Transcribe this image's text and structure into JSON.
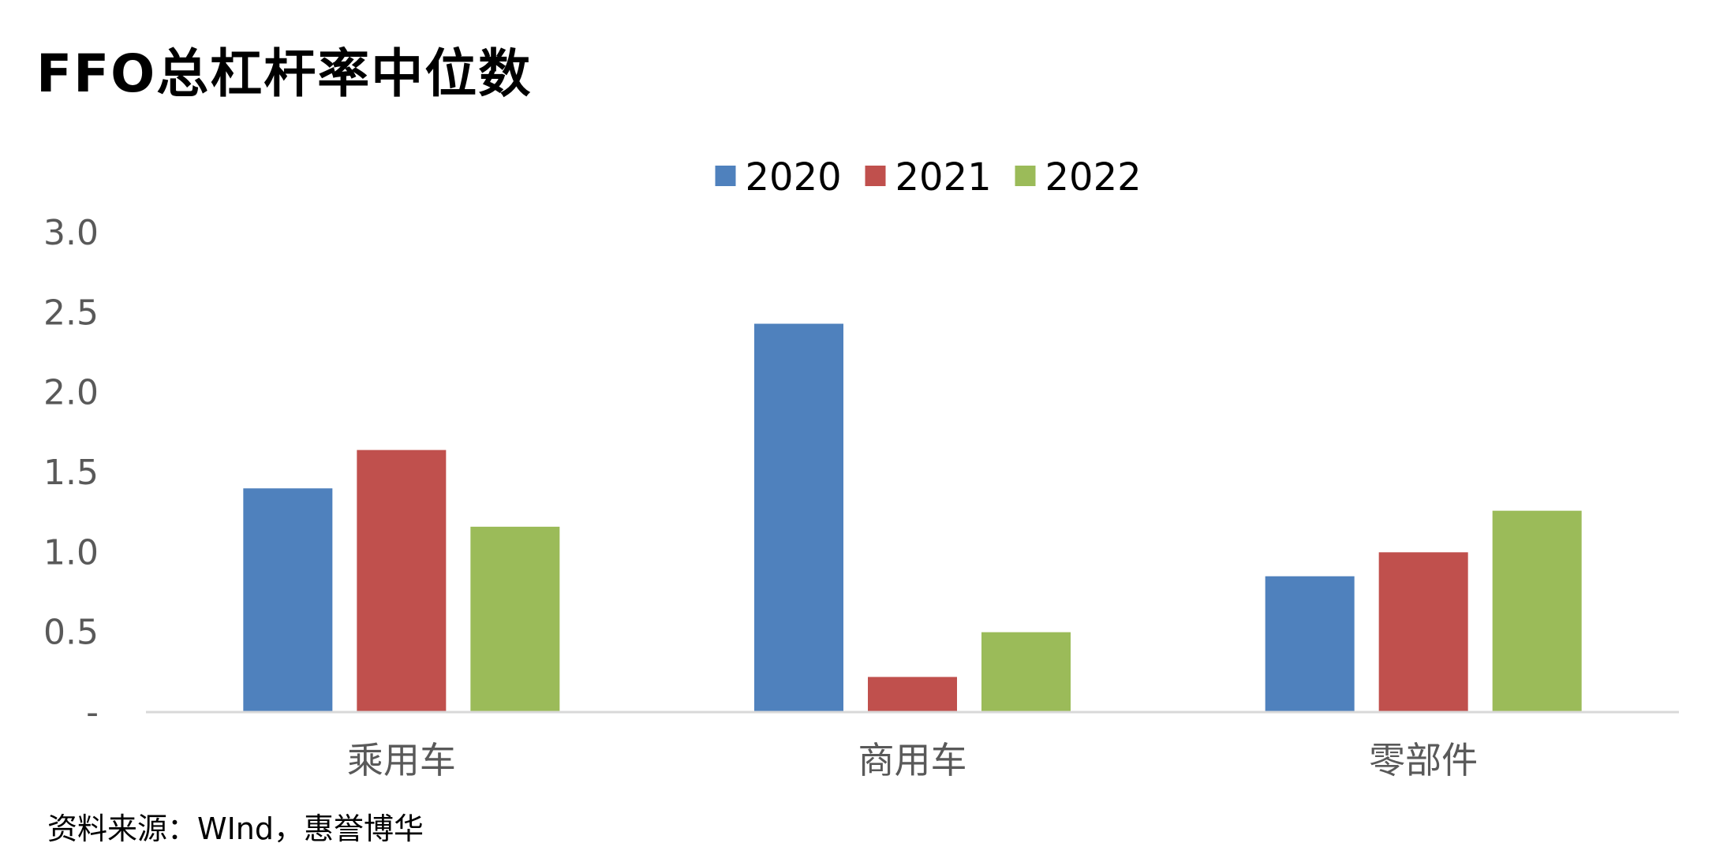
{
  "title": "FFO总杠杆率中位数",
  "source": "资料来源：WInd，惠誉博华",
  "chart_data": {
    "type": "bar",
    "title": "FFO总杠杆率中位数",
    "categories": [
      "乘用车",
      "商用车",
      "零部件"
    ],
    "series": [
      {
        "name": "2020",
        "color": "#4F81BD",
        "values": [
          1.4,
          2.43,
          0.85
        ]
      },
      {
        "name": "2021",
        "color": "#C0504D",
        "values": [
          1.64,
          0.22,
          1.0
        ]
      },
      {
        "name": "2022",
        "color": "#9BBB59",
        "values": [
          1.16,
          0.5,
          1.26
        ]
      }
    ],
    "ylim": [
      0,
      3.0
    ],
    "yticks": [
      0,
      0.5,
      1.0,
      1.5,
      2.0,
      2.5,
      3.0
    ],
    "ytick_labels": [
      "-",
      "0.5",
      "1.0",
      "1.5",
      "2.0",
      "2.5",
      "3.0"
    ],
    "grid": false,
    "legend": "top-center",
    "axis_color": "#D9D9D9"
  }
}
